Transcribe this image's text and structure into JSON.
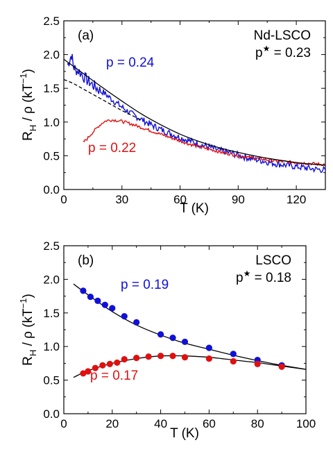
{
  "colors": {
    "blue": "#1010d8",
    "red": "#e01010",
    "fit": "#000000"
  },
  "chart_data": [
    {
      "type": "line",
      "panel_label": "(a)",
      "xlabel": "T (K)",
      "ylabel_main": "R",
      "ylabel_sub": "H",
      "ylabel_mid": " / ρ  (kT",
      "ylabel_sup": "−1",
      "ylabel_end": ")",
      "xlim": [
        0,
        135
      ],
      "ylim": [
        0,
        2.5
      ],
      "xticks": [
        "0",
        "30",
        "60",
        "90",
        "120"
      ],
      "xtick_values": [
        0,
        30,
        60,
        90,
        120
      ],
      "yticks": [
        "0.0",
        "0.5",
        "1.0",
        "1.5",
        "2.0",
        "2.5"
      ],
      "ytick_values": [
        0,
        0.5,
        1.0,
        1.5,
        2.0,
        2.5
      ],
      "annotations": {
        "material": "Nd-LSCO",
        "pstar_base": "p",
        "pstar_sup": "★",
        "pstar_val": " = 0.23"
      },
      "series": [
        {
          "name": "p = 0.24",
          "color": "blue",
          "style": "noisy",
          "x": [
            2,
            3,
            4,
            5,
            6,
            8,
            10,
            12,
            15,
            18,
            20,
            25,
            30,
            35,
            40,
            45,
            50,
            55,
            60,
            65,
            70,
            75,
            80,
            85,
            90,
            95,
            100,
            105,
            110,
            115,
            120,
            125,
            130,
            135
          ],
          "y": [
            1.85,
            1.92,
            2.0,
            1.82,
            1.78,
            1.75,
            1.68,
            1.62,
            1.55,
            1.48,
            1.45,
            1.33,
            1.22,
            1.12,
            1.04,
            0.96,
            0.89,
            0.83,
            0.77,
            0.72,
            0.67,
            0.63,
            0.58,
            0.55,
            0.51,
            0.47,
            0.44,
            0.41,
            0.38,
            0.36,
            0.34,
            0.32,
            0.3,
            0.29
          ]
        },
        {
          "name": "p = 0.22",
          "color": "red",
          "style": "noisy",
          "x": [
            10,
            12,
            14,
            16,
            18,
            20,
            22,
            24,
            26,
            28,
            30,
            35,
            40,
            45,
            50,
            55,
            60,
            65,
            70,
            75,
            80,
            85,
            90,
            95,
            100,
            105,
            110,
            115,
            120,
            125,
            130,
            135
          ],
          "y": [
            0.7,
            0.75,
            0.82,
            0.88,
            0.94,
            0.99,
            1.02,
            1.03,
            1.03,
            1.02,
            1.01,
            0.97,
            0.92,
            0.87,
            0.82,
            0.77,
            0.72,
            0.67,
            0.63,
            0.6,
            0.56,
            0.53,
            0.5,
            0.48,
            0.46,
            0.44,
            0.42,
            0.41,
            0.4,
            0.39,
            0.38,
            0.37
          ]
        },
        {
          "name": "",
          "color": "fit",
          "style": "solid",
          "x": [
            0,
            10,
            20,
            30,
            40,
            50,
            60,
            70,
            80,
            90,
            100,
            110,
            120,
            130,
            135
          ],
          "y": [
            1.93,
            1.72,
            1.51,
            1.31,
            1.12,
            0.96,
            0.82,
            0.71,
            0.62,
            0.55,
            0.49,
            0.44,
            0.4,
            0.37,
            0.36
          ]
        },
        {
          "name": "",
          "color": "fit",
          "style": "dashed",
          "x": [
            0,
            5,
            10,
            15,
            20,
            25,
            30,
            35,
            40
          ],
          "y": [
            1.63,
            1.57,
            1.49,
            1.41,
            1.33,
            1.25,
            1.17,
            1.1,
            1.03
          ]
        }
      ]
    },
    {
      "type": "scatter",
      "panel_label": "(b)",
      "xlabel": "T (K)",
      "ylabel_main": "R",
      "ylabel_sub": "H",
      "ylabel_mid": " / ρ  (kT",
      "ylabel_sup": "−1",
      "ylabel_end": ")",
      "xlim": [
        0,
        100
      ],
      "ylim": [
        0,
        2.5
      ],
      "xticks": [
        "0",
        "20",
        "40",
        "60",
        "80",
        "100"
      ],
      "xtick_values": [
        0,
        20,
        40,
        60,
        80,
        100
      ],
      "yticks": [
        "0.0",
        "0.5",
        "1.0",
        "1.5",
        "2.0",
        "2.5"
      ],
      "ytick_values": [
        0,
        0.5,
        1.0,
        1.5,
        2.0,
        2.5
      ],
      "annotations": {
        "material": "LSCO",
        "pstar_base": "p",
        "pstar_sup": "★",
        "pstar_val": " = 0.18"
      },
      "series": [
        {
          "name": "p = 0.19",
          "color": "blue",
          "style": "points",
          "x": [
            8,
            11,
            14,
            17,
            20,
            25,
            30,
            40,
            45,
            50,
            60,
            70,
            80,
            90
          ],
          "y": [
            1.83,
            1.74,
            1.68,
            1.62,
            1.57,
            1.45,
            1.36,
            1.18,
            1.13,
            1.07,
            0.98,
            0.89,
            0.8,
            0.72
          ]
        },
        {
          "name": "p = 0.17",
          "color": "red",
          "style": "points",
          "x": [
            8,
            10,
            13,
            16,
            19,
            22,
            25,
            30,
            35,
            40,
            45,
            50,
            60,
            70,
            80,
            90
          ],
          "y": [
            0.6,
            0.63,
            0.68,
            0.72,
            0.74,
            0.76,
            0.81,
            0.83,
            0.85,
            0.86,
            0.86,
            0.84,
            0.82,
            0.78,
            0.74,
            0.7
          ]
        },
        {
          "name": "",
          "color": "fit",
          "style": "solid",
          "x": [
            4,
            10,
            20,
            30,
            40,
            50,
            60,
            70,
            80,
            90,
            100
          ],
          "y": [
            1.93,
            1.77,
            1.52,
            1.32,
            1.17,
            1.05,
            0.96,
            0.87,
            0.79,
            0.72,
            0.66
          ]
        },
        {
          "name": "",
          "color": "fit",
          "style": "solid",
          "x": [
            4,
            10,
            20,
            30,
            40,
            50,
            60,
            70,
            80,
            90,
            100
          ],
          "y": [
            0.54,
            0.64,
            0.75,
            0.82,
            0.86,
            0.86,
            0.84,
            0.8,
            0.76,
            0.71,
            0.66
          ]
        }
      ]
    }
  ]
}
